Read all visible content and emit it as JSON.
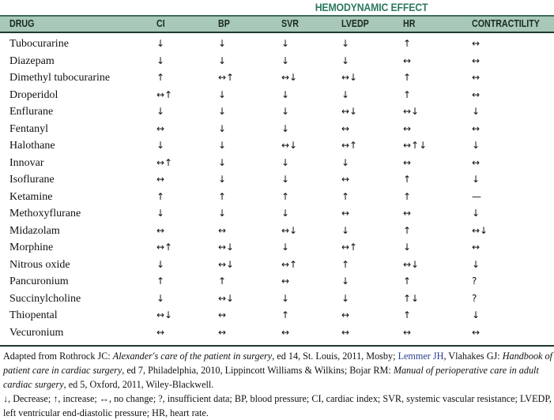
{
  "title": "HEMODYNAMIC EFFECT",
  "columns": [
    "DRUG",
    "CI",
    "BP",
    "SVR",
    "LVEDP",
    "HR",
    "CONTRACTILITY"
  ],
  "rows": [
    [
      "Tubocurarine",
      "↓",
      "↓",
      "↓",
      "↓",
      "↑",
      "↔"
    ],
    [
      "Diazepam",
      "↓",
      "↓",
      "↓",
      "↓",
      "↔",
      "↔"
    ],
    [
      "Dimethyl tubocurarine",
      "↑",
      "↔↑",
      "↔↓",
      "↔↓",
      "↑",
      "↔"
    ],
    [
      "Droperidol",
      "↔↑",
      "↓",
      "↓",
      "↓",
      "↑",
      "↔"
    ],
    [
      "Enflurane",
      "↓",
      "↓",
      "↓",
      "↔↓",
      "↔↓",
      "↓"
    ],
    [
      "Fentanyl",
      "↔",
      "↓",
      "↓",
      "↔",
      "↔",
      "↔"
    ],
    [
      "Halothane",
      "↓",
      "↓",
      "↔↓",
      "↔↑",
      "↔↑↓",
      "↓"
    ],
    [
      "Innovar",
      "↔↑",
      "↓",
      "↓",
      "↓",
      "↔",
      "↔"
    ],
    [
      "Isoflurane",
      "↔",
      "↓",
      "↓",
      "↔",
      "↑",
      "↓"
    ],
    [
      "Ketamine",
      "↑",
      "↑",
      "↑",
      "↑",
      "↑",
      "—"
    ],
    [
      "Methoxyflurane",
      "↓",
      "↓",
      "↓",
      "↔",
      "↔",
      "↓"
    ],
    [
      "Midazolam",
      "↔",
      "↔",
      "↔↓",
      "↓",
      "↑",
      "↔↓"
    ],
    [
      "Morphine",
      "↔↑",
      "↔↓",
      "↓",
      "↔↑",
      "↓",
      "↔"
    ],
    [
      "Nitrous oxide",
      "↓",
      "↔↓",
      "↔↑",
      "↑",
      "↔↓",
      "↓"
    ],
    [
      "Pancuronium",
      "↑",
      "↑",
      "↔",
      "↓",
      "↑",
      "?"
    ],
    [
      "Succinylcholine",
      "↓",
      "↔↓",
      "↓",
      "↓",
      "↑↓",
      "?"
    ],
    [
      "Thiopental",
      "↔↓",
      "↔",
      "↑",
      "↔",
      "↑",
      "↓"
    ],
    [
      "Vecuronium",
      "↔",
      "↔",
      "↔",
      "↔",
      "↔",
      "↔"
    ]
  ],
  "footnote": {
    "source_a": "Adapted from Rothrock JC: ",
    "source_b": "Alexander's care of the patient in surgery",
    "source_c": ", ed 14, St. Louis, 2011, Mosby; ",
    "source_link": "Lemmer JH",
    "source_d": ", Vlahakes GJ: ",
    "source_e": "Handbook of patient care in cardiac surgery",
    "source_f": ", ed 7, Philadelphia, 2010, Lippincott Williams & Wilkins; Bojar RM: ",
    "source_g": "Manual of perioperative care in adult cardiac surgery",
    "source_h": ", ed 5, Oxford, 2011, Wiley-Blackwell.",
    "legend": "↓, Decrease; ↑, increase; ↔, no change; ?, insufficient data; BP, blood pressure; CI, cardiac index; SVR, systemic vascular resistance; LVEDP, left ventricular end-diastolic pressure; HR, heart rate."
  },
  "colors": {
    "header_bg": "#a8c8b8",
    "title": "#2b7a5c",
    "link": "#2a3f8f"
  }
}
